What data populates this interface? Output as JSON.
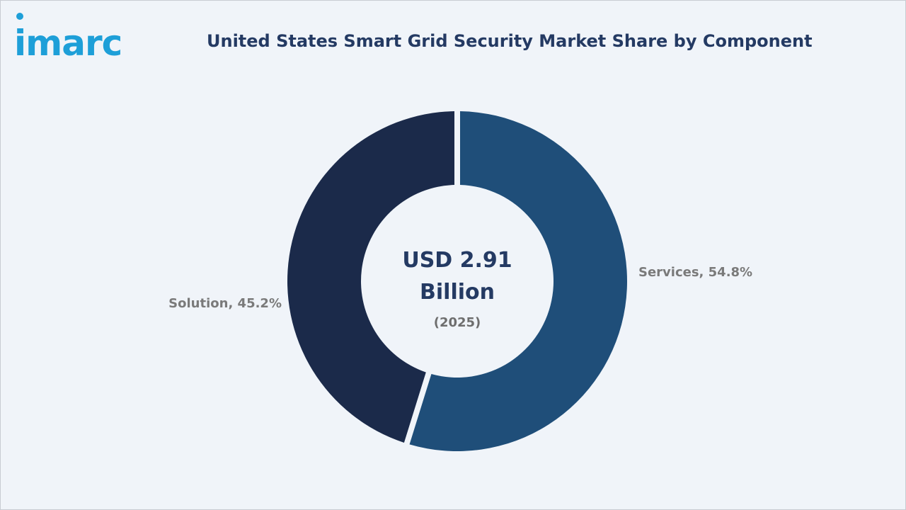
{
  "brand": {
    "logo_text": "imarc",
    "color": "#1e9fd8"
  },
  "chart_data": {
    "type": "pie",
    "title": "United States Smart Grid Security Market Share by Component",
    "center": {
      "value_line1": "USD 2.91",
      "value_line2": "Billion",
      "year": "(2025)"
    },
    "slices": [
      {
        "name": "Services",
        "value": 54.8,
        "label": "Services, 54.8%",
        "color": "#1f4e79"
      },
      {
        "name": "Solution",
        "value": 45.2,
        "label": "Solution, 45.2%",
        "color": "#1b2a4a"
      }
    ],
    "legend": "none"
  }
}
